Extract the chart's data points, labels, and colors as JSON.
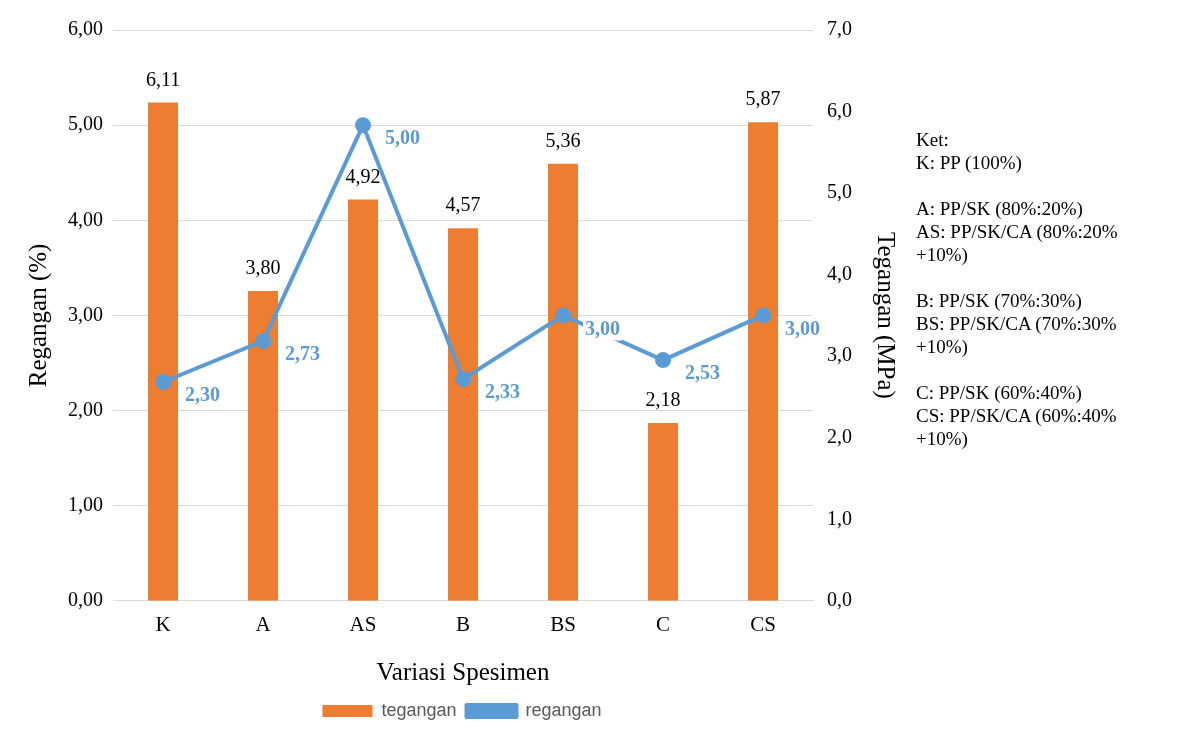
{
  "chart_data": {
    "type": "bar",
    "xlabel": "Variasi Spesimen",
    "ylabel": "Regangan (%)",
    "y2label": "Tegangan (MPa)",
    "categories": [
      "K",
      "A",
      "AS",
      "B",
      "BS",
      "C",
      "CS"
    ],
    "series": [
      {
        "name": "tegangan",
        "axis": "y2",
        "color": "#ed7d31",
        "values": [
          6.11,
          3.8,
          4.92,
          4.57,
          5.36,
          2.18,
          5.87
        ],
        "value_labels": [
          "6,11",
          "3,80",
          "4,92",
          "4,57",
          "5,36",
          "2,18",
          "5,87"
        ]
      },
      {
        "name": "regangan",
        "type": "line",
        "color": "#5b9bd5",
        "values": [
          2.3,
          2.73,
          5.0,
          2.33,
          3.0,
          2.53,
          3.0
        ],
        "value_labels": [
          "2,30",
          "2,73",
          "5,00",
          "2,33",
          "3,00",
          "2,53",
          "3,00"
        ]
      }
    ],
    "ylim": [
      0,
      6
    ],
    "yticks": [
      {
        "value": 0,
        "label": "0,00"
      },
      {
        "value": 1,
        "label": "1,00"
      },
      {
        "value": 2,
        "label": "2,00"
      },
      {
        "value": 3,
        "label": "3,00"
      },
      {
        "value": 4,
        "label": "4,00"
      },
      {
        "value": 5,
        "label": "5,00"
      },
      {
        "value": 6,
        "label": "6,00"
      }
    ],
    "y2lim": [
      0,
      7
    ],
    "y2ticks": [
      {
        "value": 0,
        "label": "0,0"
      },
      {
        "value": 1,
        "label": "1,0"
      },
      {
        "value": 2,
        "label": "2,0"
      },
      {
        "value": 3,
        "label": "3,0"
      },
      {
        "value": 4,
        "label": "4,0"
      },
      {
        "value": 5,
        "label": "5,0"
      },
      {
        "value": 6,
        "label": "6,0"
      },
      {
        "value": 7,
        "label": "7,0"
      }
    ],
    "grid": "y",
    "legend": "bottom",
    "marker": "circle",
    "line_style": "solid",
    "annotations": [
      "Ket:",
      "K: PP (100%)",
      "A: PP/SK (80%:20%)",
      "AS: PP/SK/CA (80%:20% +10%)",
      "B: PP/SK (70%:30%)",
      "BS: PP/SK/CA (70%:30% +10%)",
      "C: PP/SK (60%:40%)",
      "CS: PP/SK/CA (60%:40% +10%)"
    ]
  }
}
